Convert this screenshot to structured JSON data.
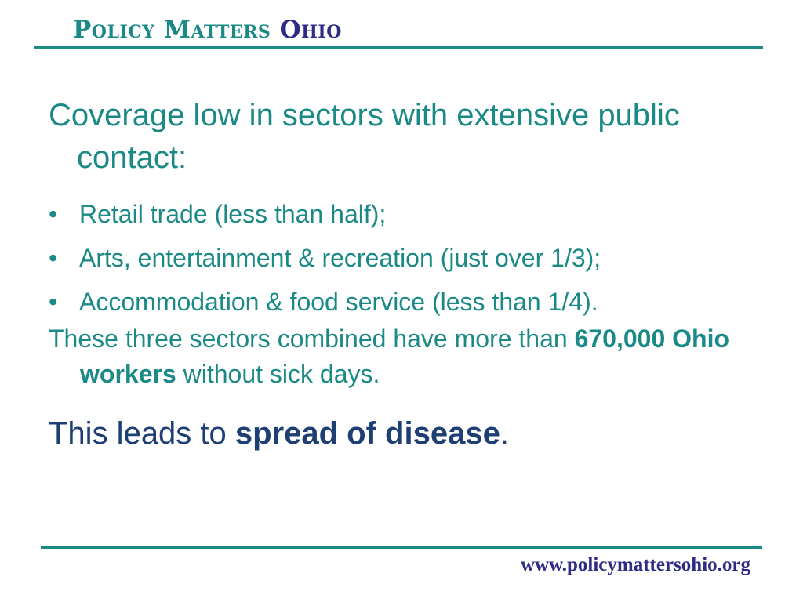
{
  "header": {
    "org_part1": "Policy Matters",
    "org_part2": "Ohio"
  },
  "body": {
    "heading": "Coverage low in sectors with extensive public contact:",
    "bullets": [
      "Retail trade (less than half);",
      "Arts, entertainment & recreation (just over 1/3);",
      "Accommodation & food service (less than 1/4)."
    ],
    "combined_text_pre": "These three sectors combined have more than ",
    "combined_text_bold": "670,000 Ohio workers",
    "combined_text_post": " without sick days.",
    "conclusion_pre": "This leads to ",
    "conclusion_bold": "spread of disease",
    "conclusion_post": "."
  },
  "footer": {
    "url": "www.policymattersohio.org"
  },
  "colors": {
    "teal": "#1b8a86",
    "navy": "#2d2b86",
    "dark_blue": "#1e3f73"
  }
}
